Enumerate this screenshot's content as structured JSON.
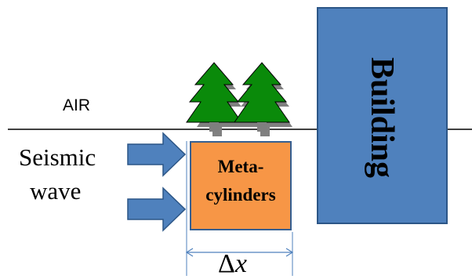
{
  "labels": {
    "air": "AIR",
    "seismic": "Seismic",
    "wave": "wave",
    "meta_line1": "Meta-",
    "meta_line2": "cylinders",
    "building": "Building",
    "delta": "Δ",
    "x": "x"
  },
  "colors": {
    "metacylinders_fill": "#f79646",
    "building_fill": "#4f81bd",
    "arrow_fill": "#4f81bd",
    "tree_fill": "#008000",
    "trunk_fill": "#7f7f7f",
    "dimension_color": "#4f81bd"
  }
}
